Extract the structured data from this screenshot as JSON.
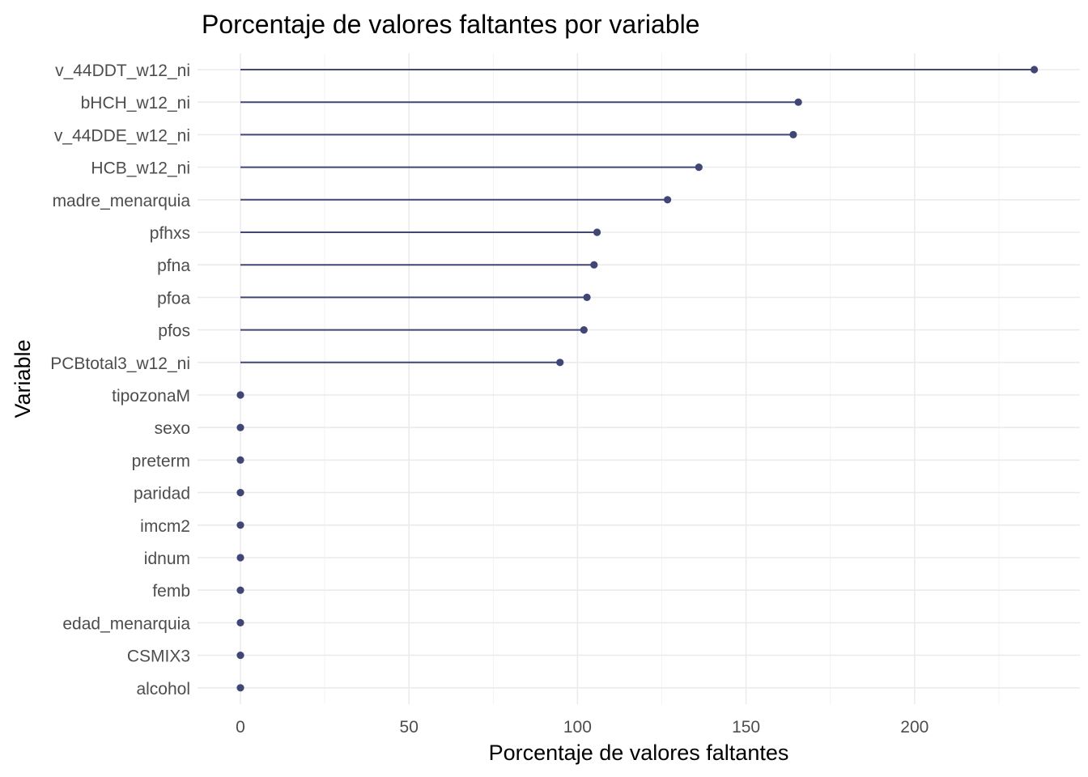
{
  "chart_data": {
    "type": "lollipop",
    "title": "Porcentaje de valores faltantes por variable",
    "xlabel": "Porcentaje de valores faltantes",
    "ylabel": "Variable",
    "xlim": [
      -12.5,
      248
    ],
    "x_ticks": [
      0,
      50,
      100,
      150,
      200
    ],
    "x_tick_labels": [
      "0",
      "50",
      "100",
      "150",
      "200"
    ],
    "x_minor_ticks": [
      25,
      75,
      125,
      175,
      225
    ],
    "grid": true,
    "color": "#404775",
    "categories": [
      "v_44DDT_w12_ni",
      "bHCH_w12_ni",
      "v_44DDE_w12_ni",
      "HCB_w12_ni",
      "madre_menarquia",
      "pfhxs",
      "pfna",
      "pfoa",
      "pfos",
      "PCBtotal3_w12_ni",
      "tipozonaM",
      "sexo",
      "preterm",
      "paridad",
      "imcm2",
      "idnum",
      "femb",
      "edad_menarquia",
      "CSMIX3",
      "alcohol"
    ],
    "values": [
      235.5,
      165.5,
      164.0,
      136.0,
      126.7,
      105.8,
      104.9,
      102.8,
      101.9,
      94.8,
      0,
      0,
      0,
      0,
      0,
      0,
      0,
      0,
      0,
      0
    ]
  }
}
